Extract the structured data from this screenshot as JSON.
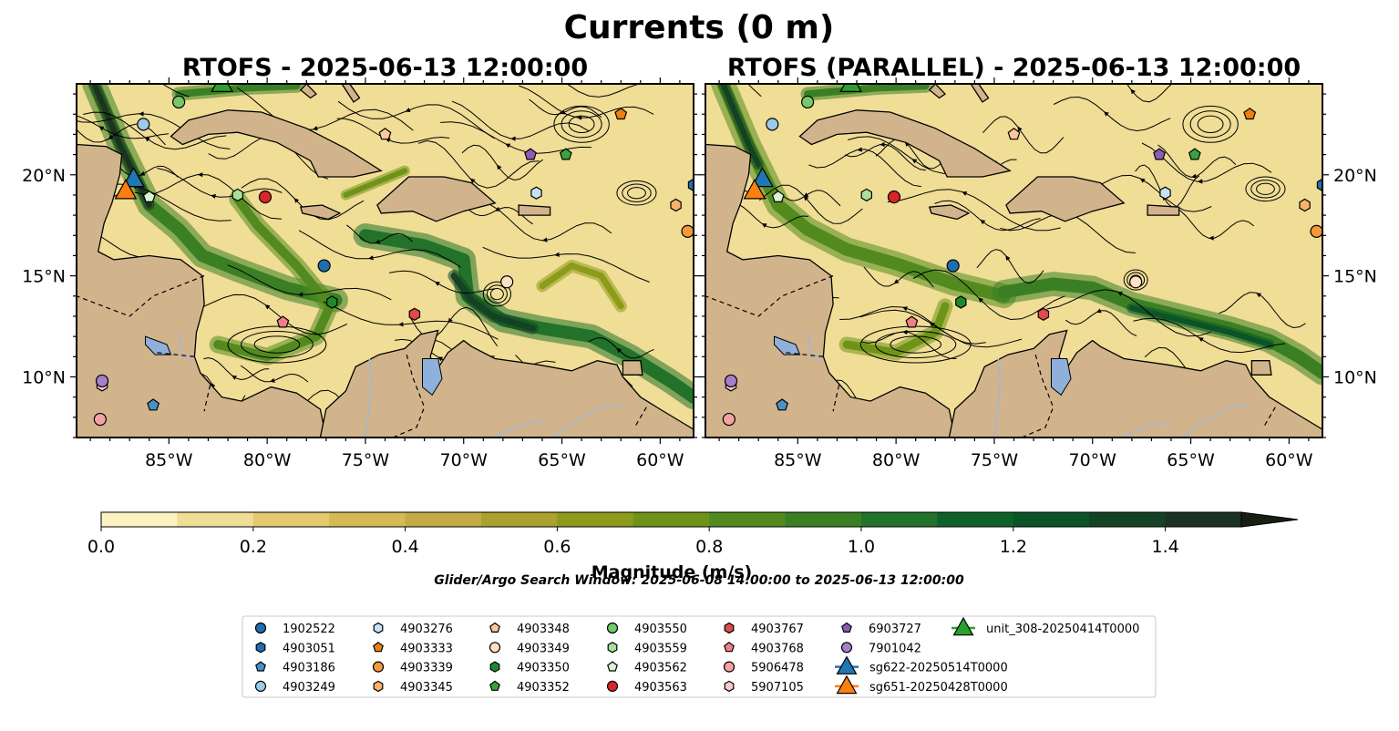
{
  "figure": {
    "title": "Currents (0 m)",
    "search_window": "Glider/Argo Search Window: 2025-06-08 14:00:00 to 2025-06-13 12:00:00"
  },
  "colors": {
    "land": "#d2b48c",
    "lake": "#8fb0db",
    "river": "#a6b8cc",
    "frame": "#000000",
    "streamline": "#000000",
    "colormap": [
      "#fbf3c2",
      "#f0dd96",
      "#e4c96f",
      "#d5b955",
      "#c5ab45",
      "#aaa12e",
      "#8d9b1b",
      "#6f9318",
      "#528a1f",
      "#3b7f25",
      "#22722a",
      "#0e6229",
      "#0a5426",
      "#134324",
      "#1b3321",
      "#161f12"
    ]
  },
  "chart_data": [
    {
      "type": "streamline-map",
      "title": "RTOFS - 2025-06-13 12:00:00",
      "x_ticks": [
        "85°W",
        "80°W",
        "75°W",
        "70°W",
        "65°W",
        "60°W"
      ],
      "x_tick_values": [
        -85,
        -80,
        -75,
        -70,
        -65,
        -60
      ],
      "y_ticks": [
        "20°N",
        "15°N",
        "10°N"
      ],
      "y_tick_values": [
        20,
        15,
        10
      ],
      "xlim": [
        -89.7,
        -58.3
      ],
      "ylim": [
        7.0,
        24.5
      ],
      "y_tick_side": "left",
      "colorbar": {
        "label": "Magnitude (m/s)",
        "ticks": [
          "0.0",
          "0.2",
          "0.4",
          "0.6",
          "0.8",
          "1.0",
          "1.2",
          "1.4"
        ],
        "tick_values": [
          0,
          0.2,
          0.4,
          0.6,
          0.8,
          1.0,
          1.2,
          1.4
        ],
        "range": [
          0,
          1.5
        ],
        "extend": "max"
      },
      "series": [
        {
          "name": "1902522",
          "lon": -77.1,
          "lat": 15.5
        },
        {
          "name": "4903051",
          "lon": -58.3,
          "lat": 19.5
        },
        {
          "name": "4903186",
          "lon": -85.8,
          "lat": 8.6
        },
        {
          "name": "4903249",
          "lon": -86.3,
          "lat": 22.5
        },
        {
          "name": "4903276",
          "lon": -66.3,
          "lat": 19.1
        },
        {
          "name": "4903333",
          "lon": -62.0,
          "lat": 23.0
        },
        {
          "name": "4903339",
          "lon": -58.6,
          "lat": 17.2
        },
        {
          "name": "4903345",
          "lon": -59.2,
          "lat": 18.5
        },
        {
          "name": "4903348",
          "lon": -74.0,
          "lat": 22.0
        },
        {
          "name": "4903349",
          "lon": -67.8,
          "lat": 14.7
        },
        {
          "name": "4903350",
          "lon": -76.7,
          "lat": 13.7
        },
        {
          "name": "4903352",
          "lon": -64.8,
          "lat": 21.0
        },
        {
          "name": "4903550",
          "lon": -84.5,
          "lat": 23.6
        },
        {
          "name": "4903559",
          "lon": -81.5,
          "lat": 19.0
        },
        {
          "name": "4903562",
          "lon": -86.0,
          "lat": 18.9
        },
        {
          "name": "4903563",
          "lon": -80.1,
          "lat": 18.9
        },
        {
          "name": "4903767",
          "lon": -72.5,
          "lat": 13.1
        },
        {
          "name": "4903768",
          "lon": -79.2,
          "lat": 12.7
        },
        {
          "name": "5906478",
          "lon": -88.5,
          "lat": 7.9
        },
        {
          "name": "5907105",
          "lon": -88.4,
          "lat": 9.6
        },
        {
          "name": "6903727",
          "lon": -66.6,
          "lat": 21.0
        },
        {
          "name": "7901042",
          "lon": -88.4,
          "lat": 9.8
        },
        {
          "name": "sg622-20250514T0000",
          "lon": -86.8,
          "lat": 19.8
        },
        {
          "name": "sg651-20250428T0000",
          "lon": -87.2,
          "lat": 19.2
        },
        {
          "name": "unit_308-20250414T0000",
          "lon": -82.3,
          "lat": 24.5
        }
      ]
    },
    {
      "type": "streamline-map",
      "title": "RTOFS (PARALLEL) - 2025-06-13 12:00:00",
      "x_ticks": [
        "85°W",
        "80°W",
        "75°W",
        "70°W",
        "65°W",
        "60°W"
      ],
      "x_tick_values": [
        -85,
        -80,
        -75,
        -70,
        -65,
        -60
      ],
      "y_ticks": [
        "20°N",
        "15°N",
        "10°N"
      ],
      "y_tick_values": [
        20,
        15,
        10
      ],
      "xlim": [
        -89.7,
        -58.3
      ],
      "ylim": [
        7.0,
        24.5
      ],
      "y_tick_side": "right",
      "colorbar": {
        "label": "Magnitude (m/s)",
        "ticks": [
          "0.0",
          "0.2",
          "0.4",
          "0.6",
          "0.8",
          "1.0",
          "1.2",
          "1.4"
        ],
        "tick_values": [
          0,
          0.2,
          0.4,
          0.6,
          0.8,
          1.0,
          1.2,
          1.4
        ],
        "range": [
          0,
          1.5
        ],
        "extend": "max"
      },
      "series": [
        {
          "name": "1902522",
          "lon": -77.1,
          "lat": 15.5
        },
        {
          "name": "4903051",
          "lon": -58.3,
          "lat": 19.5
        },
        {
          "name": "4903186",
          "lon": -85.8,
          "lat": 8.6
        },
        {
          "name": "4903249",
          "lon": -86.3,
          "lat": 22.5
        },
        {
          "name": "4903276",
          "lon": -66.3,
          "lat": 19.1
        },
        {
          "name": "4903333",
          "lon": -62.0,
          "lat": 23.0
        },
        {
          "name": "4903339",
          "lon": -58.6,
          "lat": 17.2
        },
        {
          "name": "4903345",
          "lon": -59.2,
          "lat": 18.5
        },
        {
          "name": "4903348",
          "lon": -74.0,
          "lat": 22.0
        },
        {
          "name": "4903349",
          "lon": -67.8,
          "lat": 14.7
        },
        {
          "name": "4903350",
          "lon": -76.7,
          "lat": 13.7
        },
        {
          "name": "4903352",
          "lon": -64.8,
          "lat": 21.0
        },
        {
          "name": "4903550",
          "lon": -84.5,
          "lat": 23.6
        },
        {
          "name": "4903559",
          "lon": -81.5,
          "lat": 19.0
        },
        {
          "name": "4903562",
          "lon": -86.0,
          "lat": 18.9
        },
        {
          "name": "4903563",
          "lon": -80.1,
          "lat": 18.9
        },
        {
          "name": "4903767",
          "lon": -72.5,
          "lat": 13.1
        },
        {
          "name": "4903768",
          "lon": -79.2,
          "lat": 12.7
        },
        {
          "name": "5906478",
          "lon": -88.5,
          "lat": 7.9
        },
        {
          "name": "5907105",
          "lon": -88.4,
          "lat": 9.6
        },
        {
          "name": "6903727",
          "lon": -66.6,
          "lat": 21.0
        },
        {
          "name": "7901042",
          "lon": -88.4,
          "lat": 9.8
        },
        {
          "name": "sg622-20250514T0000",
          "lon": -86.8,
          "lat": 19.8
        },
        {
          "name": "sg651-20250428T0000",
          "lon": -87.2,
          "lat": 19.2
        },
        {
          "name": "unit_308-20250414T0000",
          "lon": -82.3,
          "lat": 24.5
        }
      ]
    }
  ],
  "legend": {
    "placement": "bottom-center",
    "entries": [
      {
        "name": "1902522",
        "marker": "circle",
        "color": "#1f6fb0"
      },
      {
        "name": "4903051",
        "marker": "hexagon",
        "color": "#1f6fb0"
      },
      {
        "name": "4903186",
        "marker": "pentagon",
        "color": "#4a90c8"
      },
      {
        "name": "4903249",
        "marker": "circle",
        "color": "#9ccbe8"
      },
      {
        "name": "4903276",
        "marker": "hexagon",
        "color": "#c6e2f4"
      },
      {
        "name": "4903333",
        "marker": "pentagon",
        "color": "#f07f0e"
      },
      {
        "name": "4903339",
        "marker": "circle",
        "color": "#f59a3a"
      },
      {
        "name": "4903345",
        "marker": "hexagon",
        "color": "#fbb36a"
      },
      {
        "name": "4903348",
        "marker": "pentagon",
        "color": "#fcc89a"
      },
      {
        "name": "4903349",
        "marker": "circle",
        "color": "#fde0c6"
      },
      {
        "name": "4903350",
        "marker": "hexagon",
        "color": "#1e8a2e"
      },
      {
        "name": "4903352",
        "marker": "pentagon",
        "color": "#3aa33c"
      },
      {
        "name": "4903550",
        "marker": "circle",
        "color": "#75c96a"
      },
      {
        "name": "4903559",
        "marker": "hexagon",
        "color": "#a8e19b"
      },
      {
        "name": "4903562",
        "marker": "pentagon",
        "color": "#d8f3cd"
      },
      {
        "name": "4903563",
        "marker": "circle",
        "color": "#d62728"
      },
      {
        "name": "4903767",
        "marker": "hexagon",
        "color": "#e04a4a"
      },
      {
        "name": "4903768",
        "marker": "pentagon",
        "color": "#f07f86"
      },
      {
        "name": "5906478",
        "marker": "circle",
        "color": "#f7a2a2"
      },
      {
        "name": "5907105",
        "marker": "hexagon",
        "color": "#fcc7c7"
      },
      {
        "name": "6903727",
        "marker": "pentagon",
        "color": "#8c5bb5"
      },
      {
        "name": "7901042",
        "marker": "circle",
        "color": "#a67fcb"
      },
      {
        "name": "sg622-20250514T0000",
        "marker": "triangle",
        "color": "#1f77b4"
      },
      {
        "name": "sg651-20250428T0000",
        "marker": "triangle",
        "color": "#ff7f0e"
      },
      {
        "name": "unit_308-20250414T0000",
        "marker": "triangle",
        "color": "#2ca02c"
      }
    ]
  }
}
